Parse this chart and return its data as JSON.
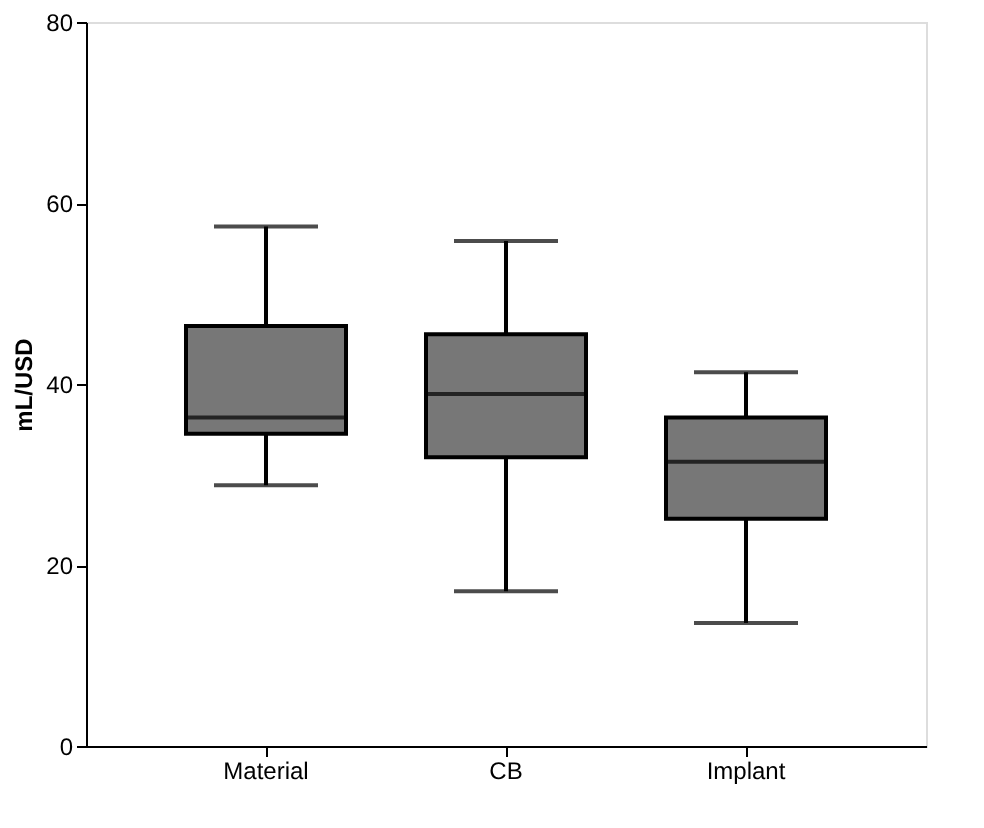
{
  "chart_data": {
    "type": "box",
    "ylabel": "mL/USD",
    "categories": [
      "Material",
      "CB",
      "Implant"
    ],
    "boxes": [
      {
        "low": 28.8,
        "q1": 34.5,
        "median": 36.3,
        "q3": 46.4,
        "high": 57.4
      },
      {
        "low": 17.1,
        "q1": 31.9,
        "median": 38.9,
        "q3": 45.5,
        "high": 55.8
      },
      {
        "low": 13.6,
        "q1": 25.1,
        "median": 31.4,
        "q3": 36.3,
        "high": 41.3
      }
    ],
    "color": "#777777",
    "ylim": [
      0,
      80
    ],
    "yticks": [
      0,
      20,
      40,
      60,
      80
    ],
    "grid": false
  }
}
